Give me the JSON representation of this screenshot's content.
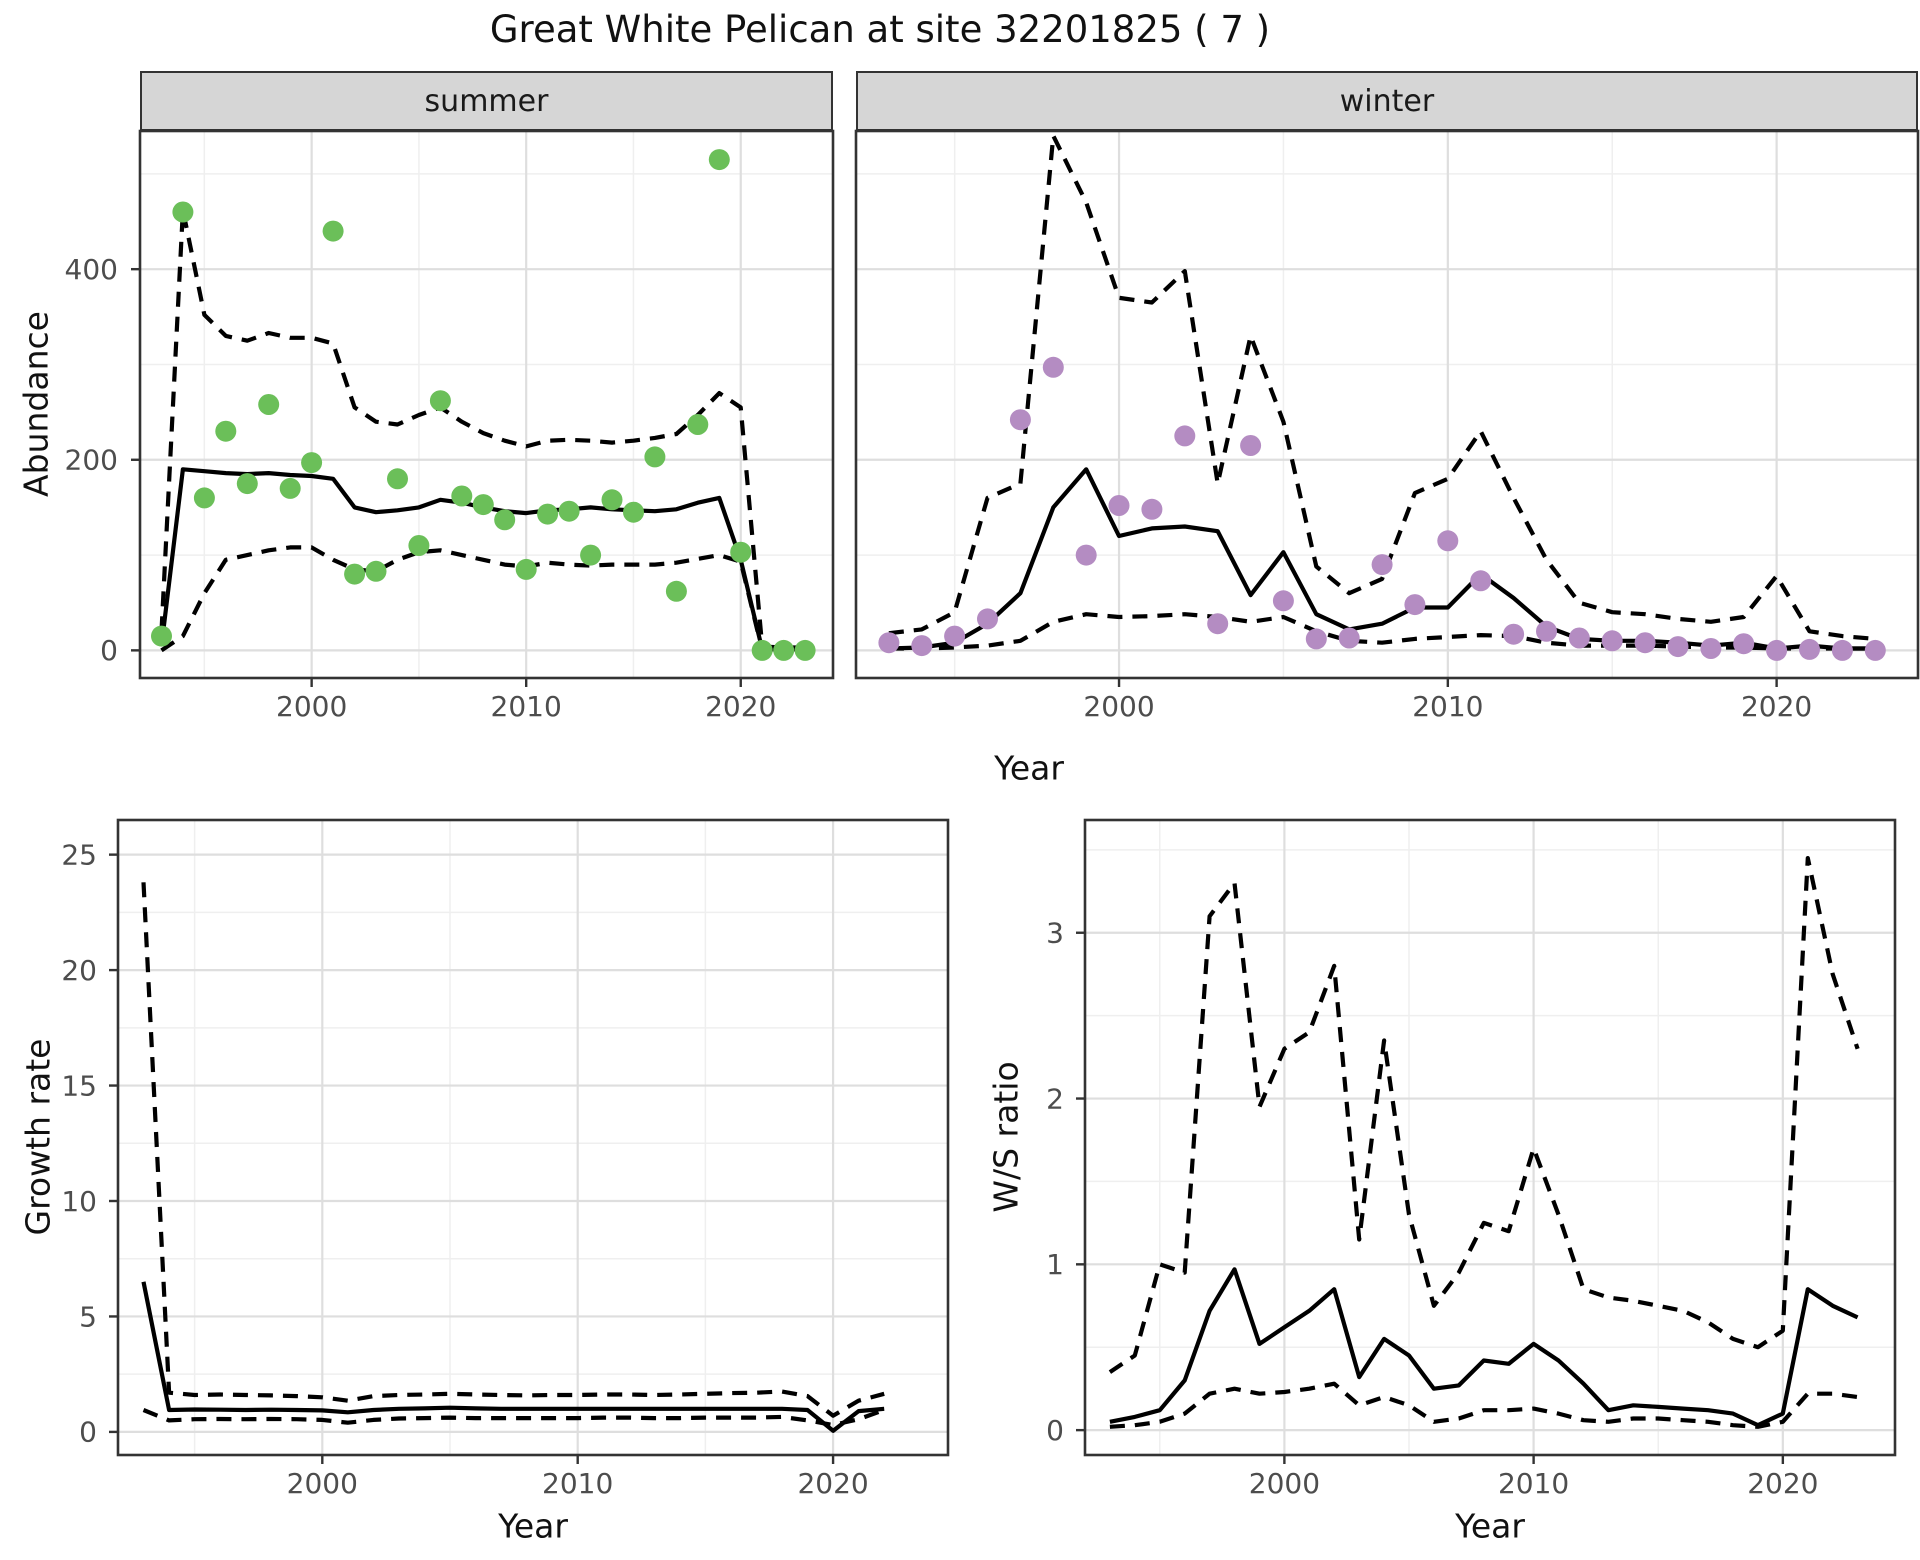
{
  "title": "Great White Pelican at site 32201825 ( 7 )",
  "colors": {
    "summer_point": "#6bbf59",
    "winter_point": "#b48cc2",
    "line": "#000000",
    "strip_fill": "#d6d6d6",
    "grid_major": "#dedede",
    "grid_minor": "#efefef",
    "border": "#333333",
    "tick_text": "#4d4d4d"
  },
  "chart_data": [
    {
      "id": "abundance-by-season",
      "type": "scatter",
      "title": "Great White Pelican at site 32201825 ( 7 )",
      "xlabel": "Year",
      "ylabel": "Abundance",
      "x_ticks": [
        2000,
        2010,
        2020
      ],
      "y_ticks": [
        0,
        200,
        400
      ],
      "xlim": [
        1992,
        2024.3
      ],
      "ylim": [
        -29,
        545
      ],
      "grid": true,
      "legend": "none",
      "x": [
        1993,
        1994,
        1995,
        1996,
        1997,
        1998,
        1999,
        2000,
        2001,
        2002,
        2003,
        2004,
        2005,
        2006,
        2007,
        2008,
        2009,
        2010,
        2011,
        2012,
        2013,
        2014,
        2015,
        2016,
        2017,
        2018,
        2019,
        2020,
        2021,
        2022,
        2023
      ],
      "facets": [
        {
          "label": "summer",
          "point_color": "#6bbf59",
          "points": [
            15,
            460,
            160,
            230,
            175,
            258,
            170,
            197,
            440,
            80,
            83,
            180,
            110,
            262,
            162,
            153,
            137,
            85,
            143,
            146,
            100,
            158,
            145,
            203,
            62,
            237,
            515,
            103,
            0,
            0,
            0
          ],
          "series": [
            {
              "name": "upper_ci",
              "style": "dashed",
              "values": [
                20,
                462,
                352,
                330,
                325,
                333,
                328,
                328,
                322,
                255,
                240,
                237,
                247,
                255,
                240,
                228,
                220,
                214,
                220,
                221,
                220,
                218,
                220,
                223,
                227,
                247,
                270,
                255,
                4,
                3,
                3
              ]
            },
            {
              "name": "lower_ci",
              "style": "dashed",
              "values": [
                0,
                15,
                60,
                95,
                100,
                105,
                108,
                108,
                95,
                85,
                83,
                95,
                103,
                105,
                100,
                95,
                90,
                88,
                92,
                90,
                89,
                90,
                90,
                90,
                92,
                96,
                100,
                93,
                0,
                0,
                0
              ]
            },
            {
              "name": "median",
              "style": "solid",
              "values": [
                5,
                190,
                188,
                186,
                185,
                186,
                184,
                183,
                180,
                150,
                145,
                147,
                150,
                158,
                155,
                150,
                146,
                144,
                147,
                148,
                150,
                148,
                147,
                146,
                148,
                155,
                160,
                95,
                1,
                1,
                1
              ]
            }
          ]
        },
        {
          "label": "winter",
          "point_color": "#b48cc2",
          "points": [
            8,
            5,
            15,
            33,
            242,
            297,
            100,
            152,
            148,
            225,
            28,
            215,
            52,
            12,
            13,
            90,
            48,
            115,
            73,
            17,
            20,
            13,
            10,
            8,
            4,
            2,
            7,
            0,
            1,
            0,
            0
          ],
          "series": [
            {
              "name": "upper_ci",
              "style": "dashed",
              "values": [
                18,
                22,
                40,
                160,
                175,
                540,
                470,
                370,
                365,
                398,
                175,
                330,
                240,
                88,
                60,
                75,
                165,
                180,
                230,
                160,
                95,
                50,
                40,
                38,
                33,
                30,
                35,
                78,
                20,
                15,
                12
              ]
            },
            {
              "name": "lower_ci",
              "style": "dashed",
              "values": [
                2,
                2,
                3,
                5,
                10,
                30,
                38,
                35,
                36,
                38,
                35,
                30,
                35,
                20,
                10,
                8,
                12,
                14,
                16,
                15,
                8,
                5,
                5,
                5,
                4,
                3,
                3,
                2,
                2,
                2,
                2
              ]
            },
            {
              "name": "median",
              "style": "solid",
              "values": [
                2,
                3,
                8,
                28,
                60,
                150,
                190,
                120,
                128,
                130,
                125,
                58,
                103,
                38,
                22,
                28,
                45,
                45,
                80,
                55,
                25,
                12,
                10,
                10,
                8,
                5,
                8,
                2,
                5,
                2,
                2
              ]
            }
          ]
        }
      ]
    },
    {
      "id": "growth-rate",
      "type": "line",
      "xlabel": "Year",
      "ylabel": "Growth rate",
      "x_ticks": [
        2000,
        2010,
        2020
      ],
      "y_ticks": [
        0,
        5,
        10,
        15,
        20,
        25
      ],
      "xlim": [
        1992,
        2024.5
      ],
      "ylim": [
        -1,
        26.5
      ],
      "grid": true,
      "legend": "none",
      "x": [
        1993,
        1994,
        1995,
        1996,
        1997,
        1998,
        1999,
        2000,
        2001,
        2002,
        2003,
        2004,
        2005,
        2006,
        2007,
        2008,
        2009,
        2010,
        2011,
        2012,
        2013,
        2014,
        2015,
        2016,
        2017,
        2018,
        2019,
        2020,
        2021,
        2022
      ],
      "series": [
        {
          "name": "upper_ci",
          "style": "dashed",
          "values": [
            23.8,
            1.7,
            1.6,
            1.62,
            1.6,
            1.58,
            1.55,
            1.5,
            1.35,
            1.55,
            1.6,
            1.62,
            1.65,
            1.62,
            1.6,
            1.58,
            1.6,
            1.6,
            1.62,
            1.62,
            1.6,
            1.62,
            1.65,
            1.68,
            1.7,
            1.75,
            1.55,
            0.7,
            1.35,
            1.65
          ]
        },
        {
          "name": "lower_ci",
          "style": "dashed",
          "values": [
            0.95,
            0.5,
            0.55,
            0.56,
            0.55,
            0.56,
            0.55,
            0.52,
            0.4,
            0.52,
            0.58,
            0.6,
            0.62,
            0.6,
            0.6,
            0.6,
            0.6,
            0.6,
            0.62,
            0.62,
            0.6,
            0.6,
            0.62,
            0.62,
            0.62,
            0.65,
            0.5,
            0.3,
            0.55,
            0.95
          ]
        },
        {
          "name": "median",
          "style": "solid",
          "values": [
            6.5,
            0.95,
            0.97,
            0.96,
            0.95,
            0.96,
            0.95,
            0.93,
            0.85,
            0.95,
            1,
            1.02,
            1.05,
            1.02,
            1,
            1,
            1,
            1,
            1,
            1,
            1,
            1,
            1,
            1,
            1,
            1,
            0.95,
            0.05,
            0.9,
            1
          ]
        }
      ]
    },
    {
      "id": "ws-ratio",
      "type": "line",
      "xlabel": "Year",
      "ylabel": "W/S ratio",
      "x_ticks": [
        2000,
        2010,
        2020
      ],
      "y_ticks": [
        0,
        1,
        2,
        3
      ],
      "xlim": [
        1992,
        2024.5
      ],
      "ylim": [
        -0.15,
        3.68
      ],
      "grid": true,
      "legend": "none",
      "x": [
        1993,
        1994,
        1995,
        1996,
        1997,
        1998,
        1999,
        2000,
        2001,
        2002,
        2003,
        2004,
        2005,
        2006,
        2007,
        2008,
        2009,
        2010,
        2011,
        2012,
        2013,
        2014,
        2015,
        2016,
        2017,
        2018,
        2019,
        2020,
        2021,
        2022,
        2023
      ],
      "series": [
        {
          "name": "upper_ci",
          "style": "dashed",
          "values": [
            0.35,
            0.45,
            1,
            0.95,
            3.1,
            3.3,
            1.95,
            2.3,
            2.4,
            2.8,
            1.15,
            2.35,
            1.3,
            0.75,
            0.95,
            1.25,
            1.2,
            1.7,
            1.3,
            0.85,
            0.8,
            0.78,
            0.75,
            0.72,
            0.65,
            0.55,
            0.5,
            0.6,
            3.45,
            2.75,
            2.3
          ]
        },
        {
          "name": "lower_ci",
          "style": "dashed",
          "values": [
            0.02,
            0.03,
            0.05,
            0.1,
            0.22,
            0.25,
            0.22,
            0.23,
            0.25,
            0.28,
            0.15,
            0.2,
            0.15,
            0.05,
            0.07,
            0.12,
            0.12,
            0.13,
            0.1,
            0.06,
            0.05,
            0.07,
            0.07,
            0.06,
            0.05,
            0.03,
            0.02,
            0.05,
            0.22,
            0.22,
            0.2
          ]
        },
        {
          "name": "median",
          "style": "solid",
          "values": [
            0.05,
            0.08,
            0.12,
            0.3,
            0.72,
            0.97,
            0.52,
            0.62,
            0.72,
            0.85,
            0.32,
            0.55,
            0.45,
            0.25,
            0.27,
            0.42,
            0.4,
            0.52,
            0.42,
            0.28,
            0.12,
            0.15,
            0.14,
            0.13,
            0.12,
            0.1,
            0.03,
            0.1,
            0.85,
            0.75,
            0.68
          ]
        }
      ]
    }
  ]
}
